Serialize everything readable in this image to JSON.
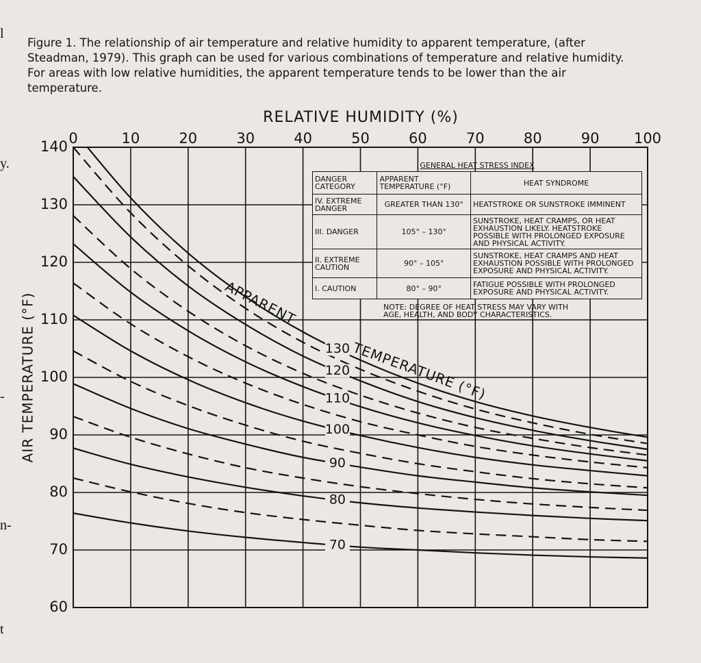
{
  "caption": "Figure 1. The relationship of air temperature and relative humidity to apparent temperature, (after Steadman, 1979). This graph can be used for various combinations of temperature and relative humidity. For areas with low relative humidities, the apparent temperature tends to be lower than the air temperature.",
  "margin_text": [
    "l",
    "y.",
    "-",
    "n-",
    "t"
  ],
  "chart_data": {
    "type": "line",
    "x_label": "RELATIVE HUMIDITY (%)",
    "y_label": "AIR TEMPERATURE (°F)",
    "x": [
      0,
      10,
      20,
      30,
      40,
      50,
      60,
      70,
      80,
      90,
      100
    ],
    "xlim": [
      0,
      100
    ],
    "xticks": [
      0,
      10,
      20,
      30,
      40,
      50,
      60,
      70,
      80,
      90,
      100
    ],
    "ylim": [
      60,
      140
    ],
    "yticks": [
      60,
      70,
      80,
      90,
      100,
      110,
      120,
      130,
      140
    ],
    "grid": true,
    "color": "#141414",
    "annotations": [
      "APPARENT",
      "TEMPERATURE (°F)"
    ],
    "series": [
      {
        "name": "70",
        "dashed": false,
        "values": [
          76.4,
          74.7,
          73.3,
          72.2,
          71.3,
          70.5,
          70.0,
          69.5,
          69.1,
          68.8,
          68.6
        ]
      },
      {
        "dashed": true,
        "values": [
          82.5,
          80.1,
          78.1,
          76.5,
          75.3,
          74.3,
          73.4,
          72.8,
          72.3,
          71.8,
          71.5
        ]
      },
      {
        "name": "80",
        "dashed": false,
        "values": [
          87.7,
          84.9,
          82.7,
          80.9,
          79.4,
          78.2,
          77.3,
          76.6,
          76.0,
          75.5,
          75.1
        ]
      },
      {
        "dashed": true,
        "values": [
          93.2,
          89.6,
          86.7,
          84.3,
          82.5,
          81.0,
          79.8,
          78.8,
          78.0,
          77.4,
          76.9
        ]
      },
      {
        "name": "90",
        "dashed": false,
        "values": [
          98.9,
          94.6,
          91.1,
          88.4,
          86.1,
          84.4,
          82.9,
          81.8,
          80.8,
          80.1,
          79.5
        ]
      },
      {
        "dashed": true,
        "values": [
          104.6,
          99.3,
          95.1,
          91.7,
          88.9,
          86.8,
          85.0,
          83.6,
          82.4,
          81.5,
          80.8
        ]
      },
      {
        "name": "100",
        "dashed": false,
        "values": [
          110.8,
          104.6,
          99.6,
          95.6,
          92.4,
          89.9,
          87.8,
          86.1,
          84.8,
          83.8,
          82.9
        ]
      },
      {
        "dashed": true,
        "values": [
          116.4,
          109.3,
          103.6,
          99.0,
          95.3,
          92.3,
          90.0,
          88.0,
          86.5,
          85.3,
          84.3
        ]
      },
      {
        "name": "110",
        "dashed": false,
        "values": [
          123.2,
          114.8,
          108.1,
          102.7,
          98.4,
          94.9,
          92.1,
          89.9,
          88.1,
          86.7,
          85.5
        ]
      },
      {
        "dashed": true,
        "values": [
          128.1,
          118.9,
          111.5,
          105.5,
          100.7,
          96.9,
          93.8,
          91.3,
          89.4,
          87.8,
          86.5
        ]
      },
      {
        "name": "120",
        "dashed": false,
        "values": [
          134.9,
          124.4,
          115.9,
          109.2,
          103.7,
          99.4,
          95.8,
          93.0,
          90.8,
          89.0,
          87.5
        ]
      },
      {
        "dashed": true,
        "values": [
          140.0,
          128.6,
          119.4,
          112.0,
          106.1,
          101.4,
          97.6,
          94.5,
          92.1,
          90.1,
          88.5
        ]
      },
      {
        "name": "130",
        "dashed": false,
        "values": [
          143.0,
          131.2,
          121.6,
          114.0,
          107.9,
          103.0,
          99.0,
          95.8,
          93.3,
          91.3,
          89.6
        ]
      }
    ]
  },
  "heat_stress_index": {
    "title": "GENERAL HEAT STRESS INDEX",
    "header": [
      "DANGER CATEGORY",
      "APPARENT TEMPERATURE (°F)",
      "HEAT SYNDROME"
    ],
    "rows": [
      [
        "IV. EXTREME DANGER",
        "GREATER THAN 130°",
        "HEATSTROKE OR SUNSTROKE IMMINENT"
      ],
      [
        "III. DANGER",
        "105° – 130°",
        "SUNSTROKE, HEAT CRAMPS, OR HEAT EXHAUSTION LIKELY. HEATSTROKE POSSIBLE WITH PROLONGED EXPOSURE AND PHYSICAL ACTIVITY."
      ],
      [
        "II. EXTREME CAUTION",
        "90° – 105°",
        "SUNSTROKE, HEAT CRAMPS AND HEAT EXHAUSTION POSSIBLE WITH PROLONGED EXPOSURE AND PHYSICAL ACTIVITY."
      ],
      [
        "I. CAUTION",
        "80° – 90°",
        "FATIGUE POSSIBLE WITH PROLONGED EXPOSURE AND PHYSICAL ACTIVITY."
      ]
    ],
    "note": "NOTE: DEGREE OF HEAT STRESS MAY VARY WITH AGE, HEALTH, AND BODY CHARACTERISTICS."
  }
}
